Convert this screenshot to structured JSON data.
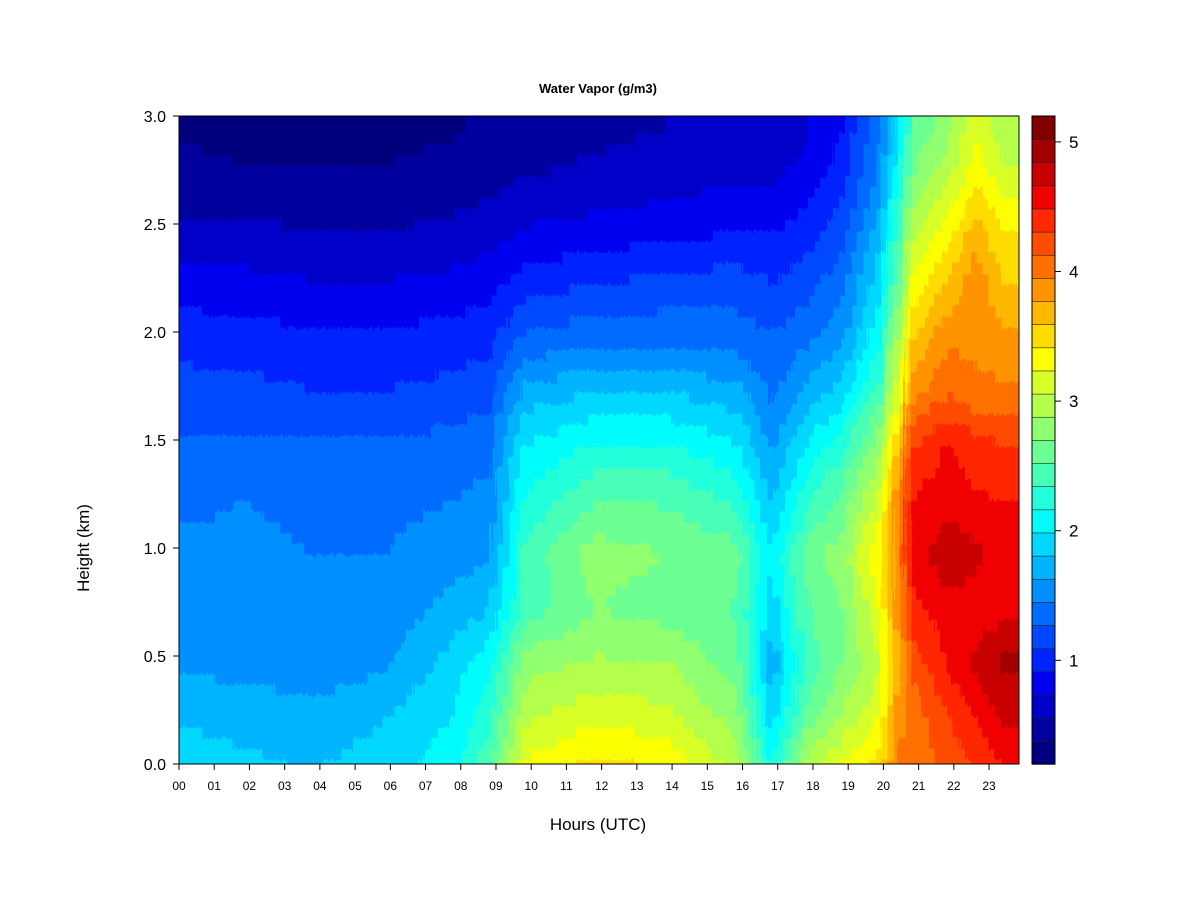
{
  "chart_data": {
    "type": "heatmap",
    "title": "Water Vapor (g/m3)",
    "xlabel": "Hours (UTC)",
    "ylabel": "Height (km)",
    "xlim": [
      0,
      23.85
    ],
    "ylim": [
      0,
      3.0
    ],
    "x_ticks": [
      0,
      1,
      2,
      3,
      4,
      5,
      6,
      7,
      8,
      9,
      10,
      11,
      12,
      13,
      14,
      15,
      16,
      17,
      18,
      19,
      20,
      21,
      22,
      23
    ],
    "x_tick_labels": [
      "00",
      "01",
      "02",
      "03",
      "04",
      "05",
      "06",
      "07",
      "08",
      "09",
      "10",
      "11",
      "12",
      "13",
      "14",
      "15",
      "16",
      "17",
      "18",
      "19",
      "20",
      "21",
      "22",
      "23"
    ],
    "y_ticks": [
      0.0,
      0.5,
      1.0,
      1.5,
      2.0,
      2.5,
      3.0
    ],
    "y_tick_labels": [
      "0.0",
      "0.5",
      "1.0",
      "1.5",
      "2.0",
      "2.5",
      "3.0"
    ],
    "colorbar": {
      "range": [
        0.2,
        5.2
      ],
      "ticks": [
        1,
        2,
        3,
        4,
        5
      ],
      "tick_labels": [
        "1",
        "2",
        "3",
        "4",
        "5"
      ],
      "colors": [
        "#00007f",
        "#00009f",
        "#0000c8",
        "#0000f0",
        "#0024ff",
        "#0048ff",
        "#006cff",
        "#0090ff",
        "#00b4ff",
        "#00d8ff",
        "#00fcfb",
        "#24ffdb",
        "#48ffb7",
        "#6cff93",
        "#90ff6f",
        "#b4ff4b",
        "#d8ff27",
        "#fcff03",
        "#ffdc00",
        "#ffb800",
        "#ff9400",
        "#ff7000",
        "#ff4c00",
        "#ff2800",
        "#f00000",
        "#c80000",
        "#a00000",
        "#800000"
      ]
    },
    "y_grid": [
      0.0,
      0.25,
      0.5,
      0.75,
      1.0,
      1.25,
      1.5,
      1.75,
      2.0,
      2.25,
      2.5,
      2.75,
      3.0
    ],
    "x_grid": [
      0,
      2,
      4,
      6,
      8,
      9,
      10,
      12,
      14,
      16,
      17,
      18,
      19,
      20,
      20.6,
      21,
      22,
      22.8,
      23.6
    ],
    "values": [
      [
        1.9,
        1.85,
        1.8,
        1.9,
        2.1,
        2.5,
        3.3,
        3.5,
        3.4,
        3.0,
        2.2,
        3.0,
        3.3,
        3.5,
        4.0,
        4.0,
        4.2,
        4.3,
        4.5
      ],
      [
        1.8,
        1.75,
        1.7,
        1.8,
        2.0,
        2.3,
        3.0,
        3.2,
        3.1,
        2.8,
        1.9,
        2.6,
        2.9,
        3.2,
        3.9,
        4.0,
        4.3,
        4.5,
        4.7
      ],
      [
        1.6,
        1.55,
        1.5,
        1.6,
        1.9,
        2.1,
        2.8,
        2.9,
        2.9,
        2.6,
        1.7,
        2.4,
        2.7,
        3.0,
        3.8,
        4.2,
        4.5,
        4.7,
        4.9
      ],
      [
        1.5,
        1.5,
        1.45,
        1.5,
        1.7,
        1.8,
        2.4,
        2.7,
        2.6,
        2.5,
        1.9,
        2.5,
        2.7,
        3.2,
        3.9,
        4.4,
        4.6,
        4.6,
        4.6
      ],
      [
        1.5,
        1.5,
        1.45,
        1.45,
        1.55,
        1.6,
        2.4,
        2.8,
        2.7,
        2.6,
        2.0,
        2.6,
        2.8,
        3.4,
        4.0,
        4.6,
        4.8,
        4.7,
        4.6
      ],
      [
        1.4,
        1.45,
        1.4,
        1.4,
        1.45,
        1.5,
        2.2,
        2.5,
        2.5,
        2.3,
        1.8,
        2.3,
        2.6,
        3.1,
        3.9,
        4.5,
        4.6,
        4.5,
        4.5
      ],
      [
        1.3,
        1.3,
        1.3,
        1.3,
        1.35,
        1.4,
        2.0,
        2.2,
        2.2,
        2.0,
        1.6,
        2.0,
        2.3,
        2.8,
        3.6,
        4.3,
        4.5,
        4.4,
        4.3
      ],
      [
        1.15,
        1.15,
        1.1,
        1.1,
        1.15,
        1.2,
        1.7,
        1.8,
        1.8,
        1.7,
        1.4,
        1.7,
        1.9,
        2.4,
        3.2,
        3.9,
        4.1,
        4.0,
        4.0
      ],
      [
        1.05,
        1.0,
        0.95,
        0.95,
        1.0,
        1.05,
        1.3,
        1.4,
        1.4,
        1.35,
        1.3,
        1.4,
        1.6,
        2.1,
        3.0,
        3.6,
        3.9,
        3.9,
        3.8
      ],
      [
        0.8,
        0.8,
        0.75,
        0.75,
        0.8,
        0.85,
        1.0,
        1.1,
        1.15,
        1.2,
        1.1,
        1.2,
        1.4,
        1.9,
        2.6,
        3.3,
        3.6,
        3.9,
        3.6
      ],
      [
        0.6,
        0.6,
        0.55,
        0.55,
        0.6,
        0.65,
        0.75,
        0.8,
        0.85,
        0.9,
        0.9,
        1.0,
        1.2,
        1.7,
        2.4,
        3.0,
        3.3,
        3.7,
        3.4
      ],
      [
        0.45,
        0.4,
        0.4,
        0.4,
        0.45,
        0.5,
        0.55,
        0.6,
        0.65,
        0.7,
        0.7,
        0.8,
        1.0,
        1.5,
        2.1,
        2.7,
        3.0,
        3.4,
        3.1
      ],
      [
        0.35,
        0.3,
        0.3,
        0.3,
        0.35,
        0.4,
        0.45,
        0.5,
        0.55,
        0.6,
        0.6,
        0.7,
        0.9,
        1.4,
        1.9,
        2.5,
        2.8,
        3.2,
        2.9
      ]
    ]
  }
}
